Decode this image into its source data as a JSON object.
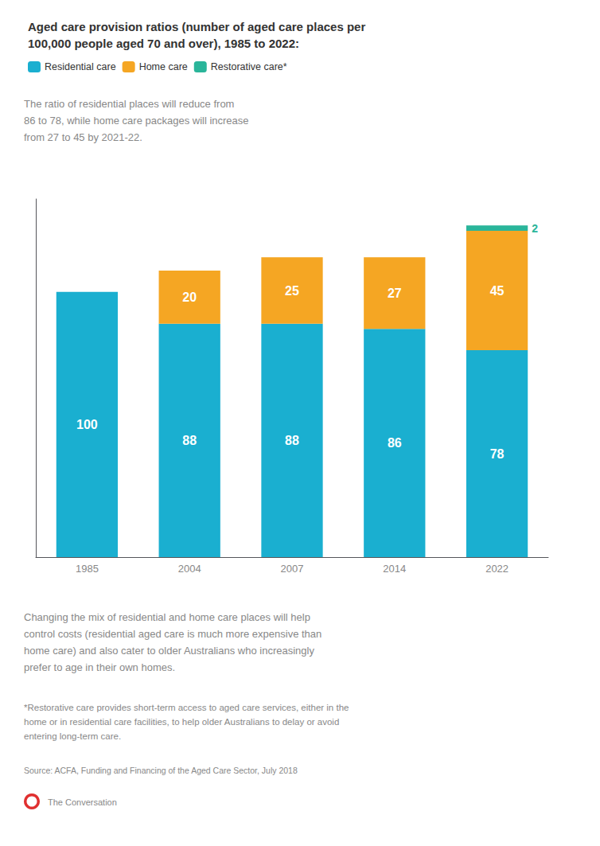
{
  "chart_data": {
    "type": "bar",
    "title": "Aged care provision ratios (number of aged care places per\n100,000 people aged 70 and over), 1985 to 2022:",
    "categories": [
      "1985",
      "2004",
      "2007",
      "2014",
      "2022"
    ],
    "series": [
      {
        "name": "Residential care",
        "color": "#1aafd0",
        "values": [
          100,
          88,
          88,
          86,
          78
        ]
      },
      {
        "name": "Home care",
        "color": "#f5a623",
        "values": [
          0,
          20,
          25,
          27,
          45
        ]
      },
      {
        "name": "Restorative care*",
        "color": "#2ab59a",
        "values": [
          0,
          0,
          0,
          0,
          2
        ]
      }
    ],
    "stacked": true,
    "data_labels": true,
    "ylim": [
      0,
      135
    ],
    "yticks": [],
    "grid": false,
    "legend": "upper left",
    "tick_labels": "x",
    "annotations": [
      "The ratio of residential places will reduce from\n86 to 78, while home care packages will increase\nfrom 27 to 45 by 2021-22.",
      "Changing the mix of residential and home care places will help\ncontrol costs (residential aged care is much more expensive than\nhome care) and also cater to older Australians who increasingly\nprefer to age in their own homes.",
      "*Restorative care provides short-term access to aged care services, either in the\nhome or in residential care facilities, to help older Australians to delay or avoid\nentering long-term care.",
      "Source: ACFA, Funding and Financing of the Aged Care Sector, July 2018",
      "The Conversation"
    ]
  }
}
